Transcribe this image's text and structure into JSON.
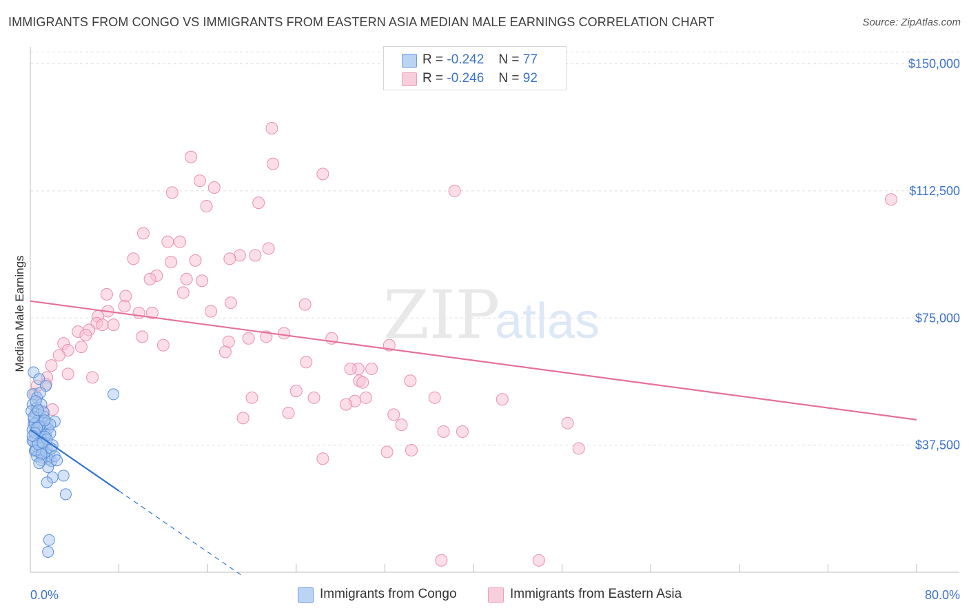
{
  "title": "IMMIGRANTS FROM CONGO VS IMMIGRANTS FROM EASTERN ASIA MEDIAN MALE EARNINGS CORRELATION CHART",
  "source": "Source: ZipAtlas.com",
  "watermark": {
    "zip": "ZIP",
    "atlas": "atlas"
  },
  "legend": {
    "r_label": "R =",
    "n_label": "N =",
    "items": [
      {
        "r": "-0.242",
        "n": "77"
      },
      {
        "r": "-0.246",
        "n": "92"
      }
    ]
  },
  "bottom_legend": [
    {
      "label": "Immigrants from Congo"
    },
    {
      "label": "Immigrants from Eastern Asia"
    }
  ],
  "colors": {
    "congo_fill": "#aac8f0",
    "congo_stroke": "#5b8fd8",
    "congo_line": "#2f74d0",
    "asia_fill": "#f7c3d3",
    "asia_stroke": "#e890ad",
    "asia_line": "#e5709a",
    "tick": "#3b72c8",
    "grid": "#dddddd"
  },
  "chart_data": {
    "type": "scatter",
    "xlabel": "",
    "ylabel": "Median Male Earnings",
    "xlim": [
      0,
      80
    ],
    "ylim": [
      0,
      155000
    ],
    "x_tick_labels": [
      "0.0%",
      "80.0%"
    ],
    "y_ticks": [
      37500,
      75000,
      112500,
      150000
    ],
    "y_tick_labels": [
      "$37,500",
      "$75,000",
      "$112,500",
      "$150,000"
    ],
    "series": [
      {
        "name": "Immigrants from Congo",
        "trend": {
          "x0": 0,
          "y0": 42000,
          "x1": 8,
          "y1": 24000,
          "dash_to_x": 19
        },
        "points": [
          [
            0.3,
            59000
          ],
          [
            0.8,
            57000
          ],
          [
            1.4,
            55000
          ],
          [
            0.2,
            52500
          ],
          [
            0.6,
            51500
          ],
          [
            0.2,
            49500
          ],
          [
            0.6,
            48500
          ],
          [
            1.0,
            49500
          ],
          [
            0.1,
            47500
          ],
          [
            0.5,
            46800
          ],
          [
            0.9,
            46500
          ],
          [
            1.2,
            46000
          ],
          [
            0.3,
            45200
          ],
          [
            0.7,
            44800
          ],
          [
            1.1,
            44400
          ],
          [
            1.5,
            44000
          ],
          [
            0.3,
            43600
          ],
          [
            0.7,
            43200
          ],
          [
            1.1,
            42800
          ],
          [
            1.6,
            42400
          ],
          [
            0.2,
            42000
          ],
          [
            0.6,
            41500
          ],
          [
            1.0,
            41000
          ],
          [
            1.4,
            40500
          ],
          [
            0.4,
            40000
          ],
          [
            0.9,
            39500
          ],
          [
            1.3,
            39000
          ],
          [
            0.3,
            38500
          ],
          [
            0.8,
            38000
          ],
          [
            1.2,
            37600
          ],
          [
            0.5,
            37200
          ],
          [
            1.0,
            36700
          ],
          [
            1.5,
            36200
          ],
          [
            0.4,
            35800
          ],
          [
            0.8,
            35400
          ],
          [
            1.2,
            35000
          ],
          [
            1.7,
            34600
          ],
          [
            0.6,
            34200
          ],
          [
            1.1,
            33800
          ],
          [
            1.6,
            33400
          ],
          [
            1.0,
            33000
          ],
          [
            1.9,
            32800
          ],
          [
            0.5,
            36000
          ],
          [
            1.4,
            35500
          ],
          [
            2.0,
            37500
          ],
          [
            2.2,
            44500
          ],
          [
            0.4,
            44000
          ],
          [
            0.8,
            43000
          ],
          [
            1.8,
            41000
          ],
          [
            1.3,
            40000
          ],
          [
            0.2,
            38800
          ],
          [
            0.7,
            37800
          ],
          [
            1.9,
            36500
          ],
          [
            0.3,
            45800
          ],
          [
            1.2,
            47200
          ],
          [
            0.6,
            42600
          ],
          [
            1.5,
            39200
          ],
          [
            1.0,
            34800
          ],
          [
            2.2,
            34200
          ],
          [
            1.6,
            31000
          ],
          [
            2.0,
            28000
          ],
          [
            3.0,
            28500
          ],
          [
            1.5,
            26500
          ],
          [
            3.2,
            23000
          ],
          [
            1.7,
            9500
          ],
          [
            1.6,
            6000
          ],
          [
            7.5,
            52500
          ],
          [
            0.9,
            53000
          ],
          [
            0.5,
            50500
          ],
          [
            1.8,
            43600
          ],
          [
            0.4,
            41200
          ],
          [
            1.1,
            38200
          ],
          [
            2.4,
            33000
          ],
          [
            0.8,
            32200
          ],
          [
            1.3,
            44800
          ],
          [
            0.2,
            40200
          ],
          [
            0.7,
            47800
          ]
        ]
      },
      {
        "name": "Immigrants from Eastern Asia",
        "trend": {
          "x0": 0,
          "y0": 80000,
          "x1": 80,
          "y1": 45000
        },
        "points": [
          [
            21.8,
            131000
          ],
          [
            14.5,
            122500
          ],
          [
            21.9,
            120500
          ],
          [
            26.4,
            117500
          ],
          [
            15.3,
            115500
          ],
          [
            16.6,
            113500
          ],
          [
            12.8,
            112000
          ],
          [
            38.3,
            112500
          ],
          [
            20.6,
            109000
          ],
          [
            15.9,
            108000
          ],
          [
            77.7,
            110000
          ],
          [
            10.2,
            100000
          ],
          [
            12.4,
            97500
          ],
          [
            13.5,
            97500
          ],
          [
            21.5,
            95500
          ],
          [
            18.9,
            93500
          ],
          [
            20.3,
            93500
          ],
          [
            18.0,
            92500
          ],
          [
            9.3,
            92500
          ],
          [
            14.9,
            92000
          ],
          [
            12.7,
            91500
          ],
          [
            11.4,
            87500
          ],
          [
            10.8,
            86500
          ],
          [
            14.1,
            86500
          ],
          [
            15.5,
            86000
          ],
          [
            6.9,
            82000
          ],
          [
            8.6,
            81500
          ],
          [
            13.8,
            82500
          ],
          [
            18.1,
            79500
          ],
          [
            24.8,
            79000
          ],
          [
            8.5,
            78500
          ],
          [
            7.0,
            77000
          ],
          [
            16.3,
            77000
          ],
          [
            9.8,
            76500
          ],
          [
            11.0,
            76500
          ],
          [
            6.1,
            75500
          ],
          [
            6.0,
            73500
          ],
          [
            7.5,
            73000
          ],
          [
            6.5,
            73000
          ],
          [
            5.3,
            71500
          ],
          [
            4.3,
            71000
          ],
          [
            22.9,
            70500
          ],
          [
            5.0,
            70000
          ],
          [
            10.1,
            69500
          ],
          [
            21.3,
            69500
          ],
          [
            19.7,
            69000
          ],
          [
            27.2,
            69000
          ],
          [
            17.9,
            68000
          ],
          [
            3.0,
            67500
          ],
          [
            12.0,
            67000
          ],
          [
            32.4,
            67000
          ],
          [
            4.6,
            66500
          ],
          [
            3.4,
            65500
          ],
          [
            17.6,
            65000
          ],
          [
            2.6,
            64000
          ],
          [
            24.9,
            62000
          ],
          [
            29.6,
            60000
          ],
          [
            28.9,
            60000
          ],
          [
            30.8,
            60000
          ],
          [
            1.9,
            61000
          ],
          [
            3.4,
            58500
          ],
          [
            5.6,
            57500
          ],
          [
            1.5,
            57500
          ],
          [
            34.3,
            56500
          ],
          [
            29.7,
            56500
          ],
          [
            30.0,
            56000
          ],
          [
            1.4,
            55500
          ],
          [
            0.6,
            55000
          ],
          [
            24.0,
            53500
          ],
          [
            20.0,
            51500
          ],
          [
            25.6,
            51500
          ],
          [
            30.3,
            51500
          ],
          [
            36.5,
            51500
          ],
          [
            42.6,
            51000
          ],
          [
            29.3,
            50500
          ],
          [
            28.5,
            49500
          ],
          [
            2.0,
            48000
          ],
          [
            1.1,
            47500
          ],
          [
            23.3,
            47000
          ],
          [
            32.8,
            46500
          ],
          [
            19.2,
            45500
          ],
          [
            33.5,
            43500
          ],
          [
            48.5,
            44000
          ],
          [
            37.3,
            41500
          ],
          [
            39.0,
            41500
          ],
          [
            34.4,
            36000
          ],
          [
            49.5,
            36500
          ],
          [
            32.2,
            35500
          ],
          [
            26.4,
            33500
          ],
          [
            37.1,
            3500
          ],
          [
            45.9,
            3500
          ],
          [
            0.4,
            52500
          ]
        ]
      }
    ]
  }
}
